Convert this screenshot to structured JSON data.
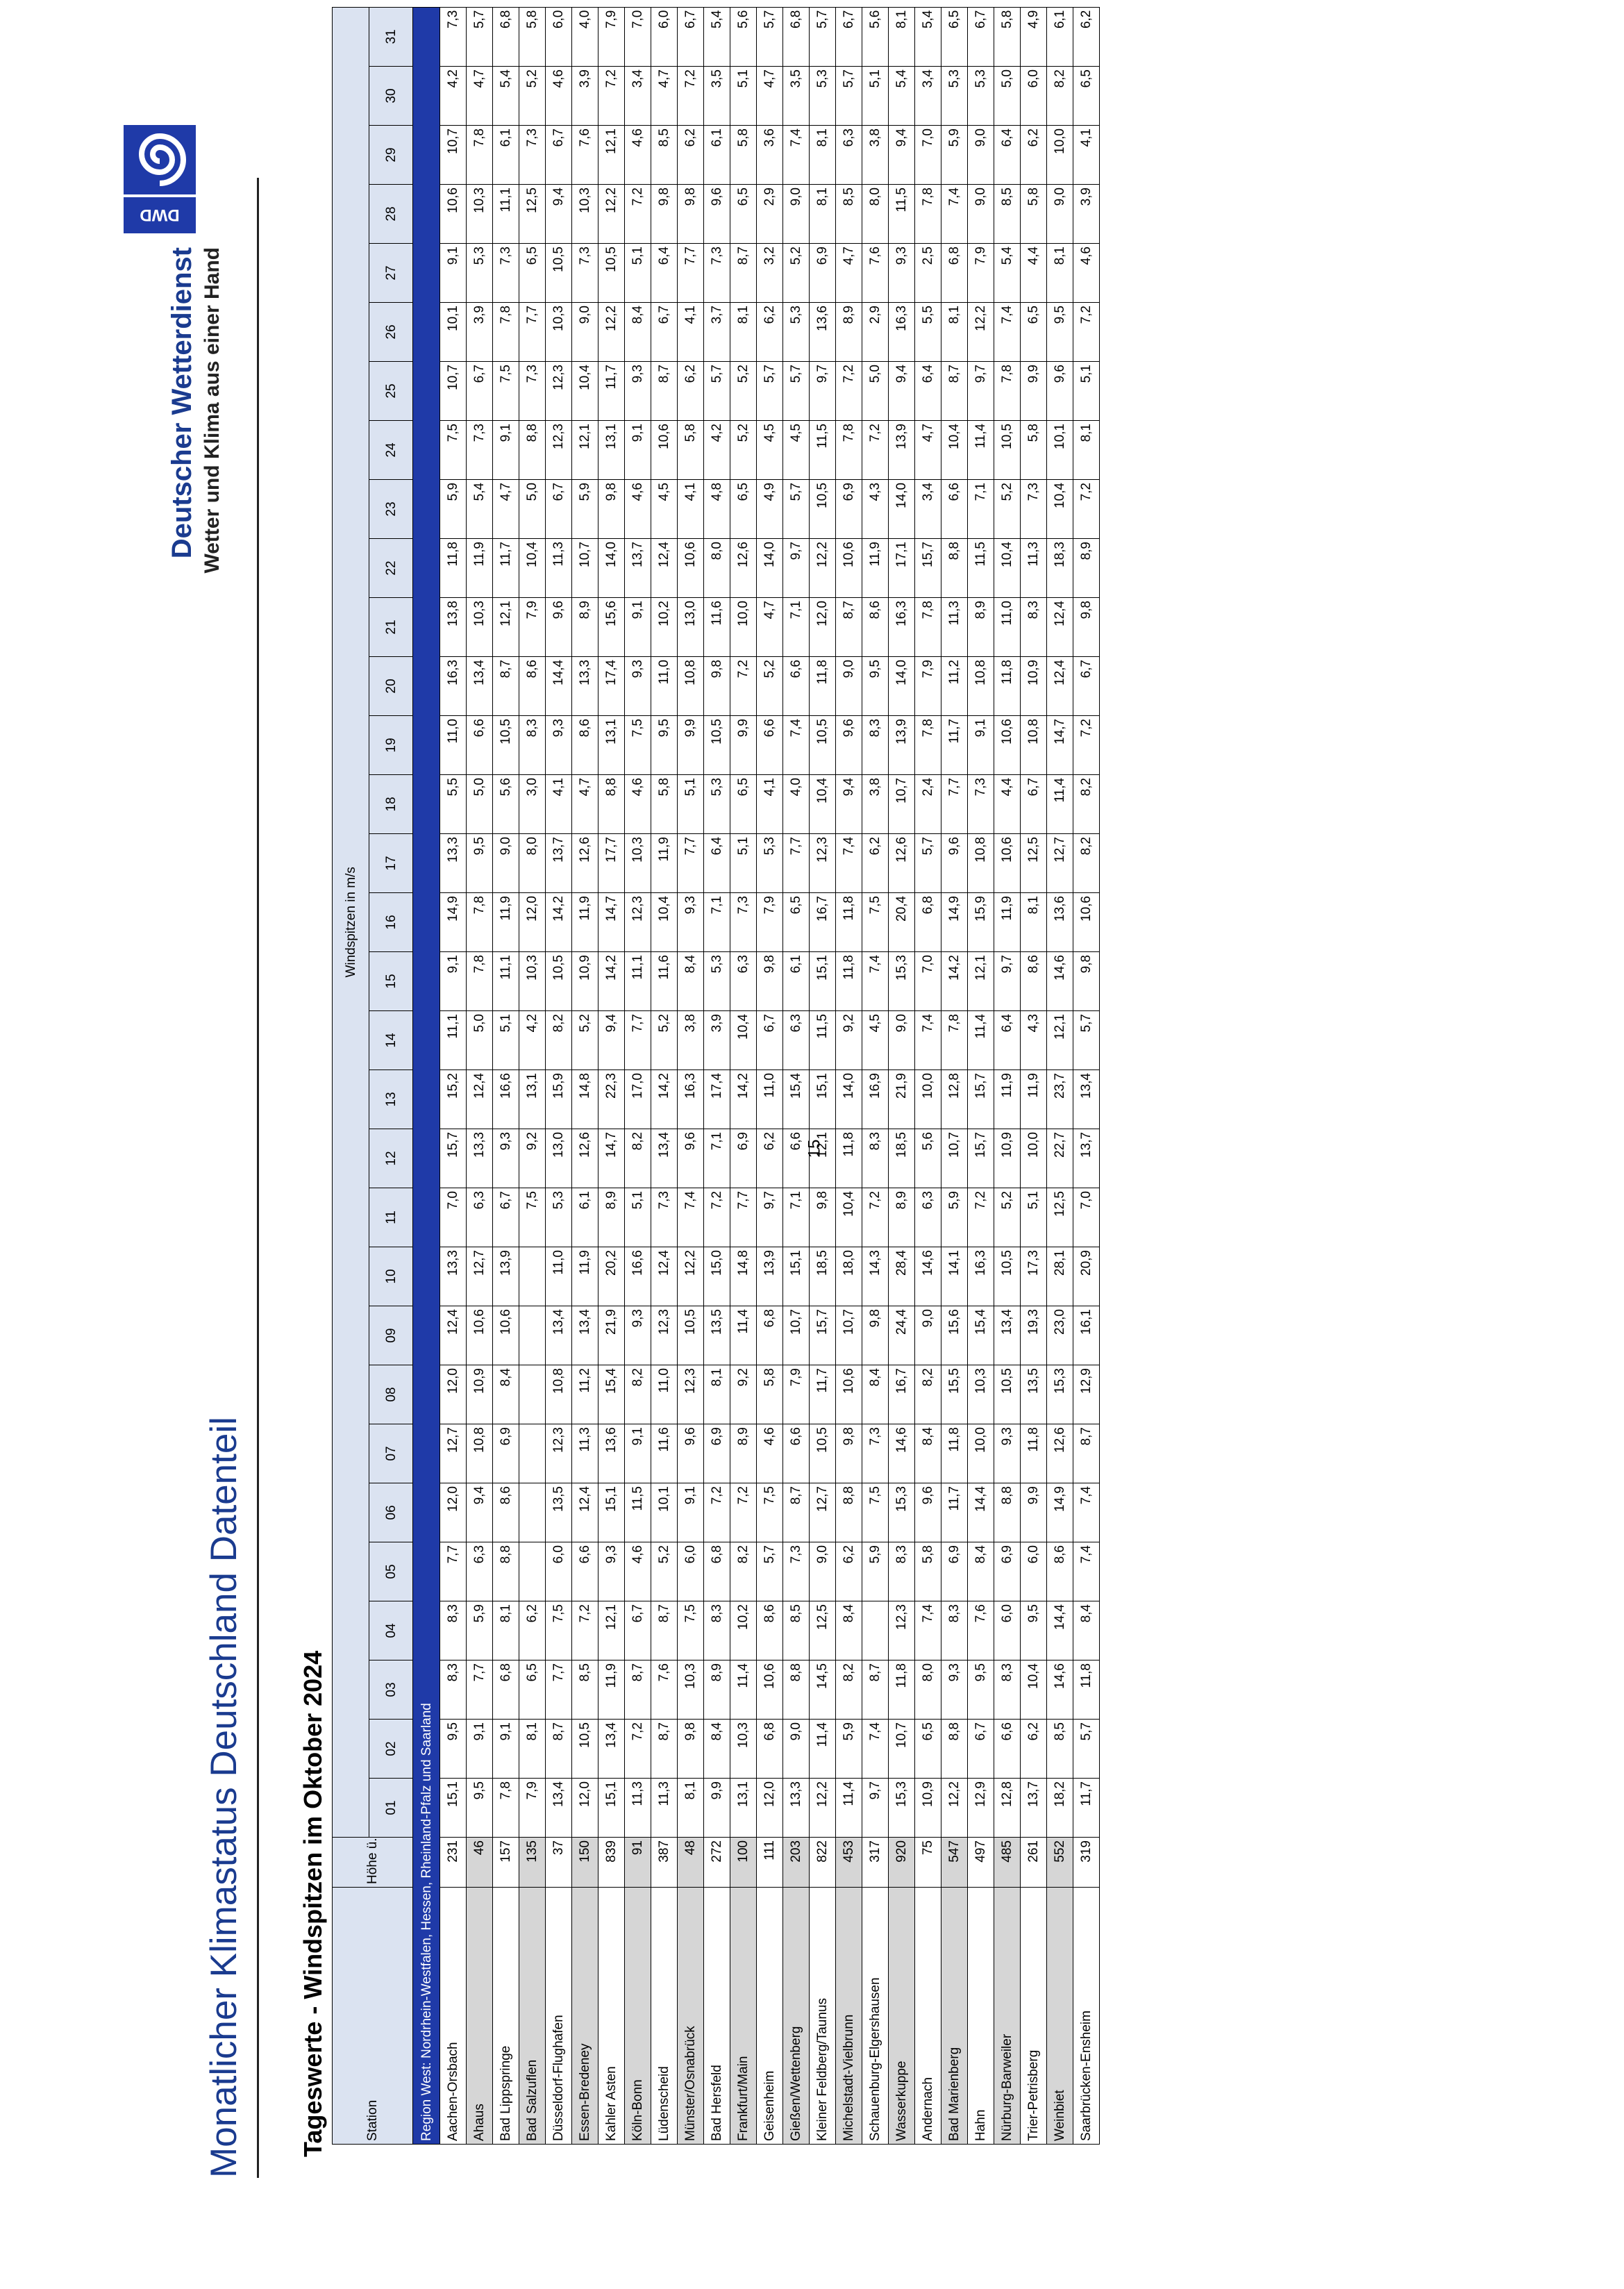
{
  "header": {
    "doc_title": "Monatlicher Klimastatus Deutschland Datenteil",
    "brand_name": "Deutscher Wetterdienst",
    "brand_claim": "Wetter und Klima aus einer Hand",
    "logo_text": "DWD",
    "logo_icon": "dwd-swirl-icon",
    "brand_color": "#1f3aa8"
  },
  "section_title": "Tageswerte - Windspitzen im Oktober 2024",
  "table": {
    "station_header": "Station",
    "height_header": "Höhe ü. NHN in m",
    "super_header": "Windspitzen in m/s",
    "days": [
      "01",
      "02",
      "03",
      "04",
      "05",
      "06",
      "07",
      "08",
      "09",
      "10",
      "11",
      "12",
      "13",
      "14",
      "15",
      "16",
      "17",
      "18",
      "19",
      "20",
      "21",
      "22",
      "23",
      "24",
      "25",
      "26",
      "27",
      "28",
      "29",
      "30",
      "31"
    ],
    "region": "Region West: Nordrhein-Westfalen, Hessen, Rheinland-Pfalz und Saarland",
    "rows": [
      {
        "station": "Aachen-Orsbach",
        "height": "231",
        "v": [
          "15,1",
          "9,5",
          "8,3",
          "8,3",
          "7,7",
          "12,0",
          "12,7",
          "12,0",
          "12,4",
          "13,3",
          "7,0",
          "15,7",
          "15,2",
          "11,1",
          "9,1",
          "14,9",
          "13,3",
          "5,5",
          "11,0",
          "16,3",
          "13,8",
          "11,8",
          "5,9",
          "7,5",
          "10,7",
          "10,1",
          "9,1",
          "10,6",
          "10,7",
          "4,2",
          "7,3"
        ]
      },
      {
        "station": "Ahaus",
        "height": "46",
        "v": [
          "9,5",
          "9,1",
          "7,7",
          "5,9",
          "6,3",
          "9,4",
          "10,8",
          "10,9",
          "10,6",
          "12,7",
          "6,3",
          "13,3",
          "12,4",
          "5,0",
          "7,8",
          "7,8",
          "9,5",
          "5,0",
          "6,6",
          "13,4",
          "10,3",
          "11,9",
          "5,4",
          "7,3",
          "6,7",
          "3,9",
          "5,3",
          "10,3",
          "7,8",
          "4,7",
          "5,7"
        ]
      },
      {
        "station": "Bad Lippspringe",
        "height": "157",
        "v": [
          "7,8",
          "9,1",
          "6,8",
          "8,1",
          "8,8",
          "8,6",
          "6,9",
          "8,4",
          "10,6",
          "13,9",
          "6,7",
          "9,3",
          "16,6",
          "5,1",
          "11,1",
          "11,9",
          "9,0",
          "5,6",
          "10,5",
          "8,7",
          "12,1",
          "11,7",
          "4,7",
          "9,1",
          "7,5",
          "7,8",
          "7,3",
          "11,1",
          "6,1",
          "5,4",
          "6,8"
        ]
      },
      {
        "station": "Bad Salzuflen",
        "height": "135",
        "v": [
          "7,9",
          "8,1",
          "6,5",
          "6,2",
          "",
          "",
          "",
          "",
          "",
          "",
          "7,5",
          "9,2",
          "13,1",
          "4,2",
          "10,3",
          "12,0",
          "8,0",
          "3,0",
          "8,3",
          "8,6",
          "7,9",
          "10,4",
          "5,0",
          "8,8",
          "7,3",
          "7,7",
          "6,5",
          "12,5",
          "7,3",
          "5,2",
          "5,8"
        ]
      },
      {
        "station": "Düsseldorf-Flughafen",
        "height": "37",
        "v": [
          "13,4",
          "8,7",
          "7,7",
          "7,5",
          "6,0",
          "13,5",
          "12,3",
          "10,8",
          "13,4",
          "11,0",
          "5,3",
          "13,0",
          "15,9",
          "8,2",
          "10,5",
          "14,2",
          "13,7",
          "4,1",
          "9,3",
          "14,4",
          "9,6",
          "11,3",
          "6,7",
          "12,3",
          "12,3",
          "10,3",
          "10,5",
          "9,4",
          "6,7",
          "4,6",
          "6,0"
        ]
      },
      {
        "station": "Essen-Bredeney",
        "height": "150",
        "v": [
          "12,0",
          "10,5",
          "8,5",
          "7,2",
          "6,6",
          "12,4",
          "11,3",
          "11,2",
          "13,4",
          "11,9",
          "6,1",
          "12,6",
          "14,8",
          "5,2",
          "10,9",
          "11,9",
          "12,6",
          "4,7",
          "8,6",
          "13,3",
          "8,9",
          "10,7",
          "5,9",
          "12,1",
          "10,4",
          "9,0",
          "7,3",
          "10,3",
          "7,6",
          "3,9",
          "4,0"
        ]
      },
      {
        "station": "Kahler Asten",
        "height": "839",
        "v": [
          "15,1",
          "13,4",
          "11,9",
          "12,1",
          "9,3",
          "15,1",
          "13,6",
          "15,4",
          "21,9",
          "20,2",
          "8,9",
          "14,7",
          "22,3",
          "9,4",
          "14,2",
          "14,7",
          "17,7",
          "8,8",
          "13,1",
          "17,4",
          "15,6",
          "14,0",
          "9,8",
          "13,1",
          "11,7",
          "12,2",
          "10,5",
          "12,2",
          "12,1",
          "7,2",
          "7,9"
        ]
      },
      {
        "station": "Köln-Bonn",
        "height": "91",
        "v": [
          "11,3",
          "7,2",
          "8,7",
          "6,7",
          "4,6",
          "11,5",
          "9,1",
          "8,2",
          "9,3",
          "16,6",
          "5,1",
          "8,2",
          "17,0",
          "7,7",
          "11,1",
          "12,3",
          "10,3",
          "4,6",
          "7,5",
          "9,3",
          "9,1",
          "13,7",
          "4,6",
          "9,1",
          "9,3",
          "8,4",
          "5,1",
          "7,2",
          "4,6",
          "3,4",
          "7,0"
        ]
      },
      {
        "station": "Lüdenscheid",
        "height": "387",
        "v": [
          "11,3",
          "8,7",
          "7,6",
          "8,7",
          "5,2",
          "10,1",
          "11,6",
          "11,0",
          "12,3",
          "12,4",
          "7,3",
          "13,4",
          "14,2",
          "5,2",
          "11,6",
          "10,4",
          "11,9",
          "5,8",
          "9,5",
          "11,0",
          "10,2",
          "12,4",
          "4,5",
          "10,6",
          "8,7",
          "6,7",
          "6,4",
          "9,8",
          "8,5",
          "4,7",
          "6,0"
        ]
      },
      {
        "station": "Münster/Osnabrück",
        "height": "48",
        "v": [
          "8,1",
          "9,8",
          "10,3",
          "7,5",
          "6,0",
          "9,1",
          "9,6",
          "12,3",
          "10,5",
          "12,2",
          "7,4",
          "9,6",
          "16,3",
          "3,8",
          "8,4",
          "9,3",
          "7,7",
          "5,1",
          "9,9",
          "10,8",
          "13,0",
          "10,6",
          "4,1",
          "5,8",
          "6,2",
          "4,1",
          "7,7",
          "9,8",
          "6,2",
          "7,2",
          "6,7"
        ]
      },
      {
        "station": "Bad Hersfeld",
        "height": "272",
        "v": [
          "9,9",
          "8,4",
          "8,9",
          "8,3",
          "6,8",
          "7,2",
          "6,9",
          "8,1",
          "13,5",
          "15,0",
          "7,2",
          "7,1",
          "17,4",
          "3,9",
          "5,3",
          "7,1",
          "6,4",
          "5,3",
          "10,5",
          "9,8",
          "11,6",
          "8,0",
          "4,8",
          "4,2",
          "5,7",
          "3,7",
          "7,3",
          "9,6",
          "6,1",
          "3,5",
          "5,4"
        ]
      },
      {
        "station": "Frankfurt/Main",
        "height": "100",
        "v": [
          "13,1",
          "10,3",
          "11,4",
          "10,2",
          "8,2",
          "7,2",
          "8,9",
          "9,2",
          "11,4",
          "14,8",
          "7,7",
          "6,9",
          "14,2",
          "10,4",
          "6,3",
          "7,3",
          "5,1",
          "6,5",
          "9,9",
          "7,2",
          "10,0",
          "12,6",
          "6,5",
          "5,2",
          "5,2",
          "8,1",
          "8,7",
          "6,5",
          "5,8",
          "5,1",
          "5,6"
        ]
      },
      {
        "station": "Geisenheim",
        "height": "111",
        "v": [
          "12,0",
          "6,8",
          "10,6",
          "8,6",
          "5,7",
          "7,5",
          "4,6",
          "5,8",
          "6,8",
          "13,9",
          "9,7",
          "6,2",
          "11,0",
          "6,7",
          "9,8",
          "7,9",
          "5,3",
          "4,1",
          "6,6",
          "5,2",
          "4,7",
          "14,0",
          "4,9",
          "4,5",
          "5,7",
          "6,2",
          "3,2",
          "2,9",
          "3,6",
          "4,7",
          "5,7"
        ]
      },
      {
        "station": "Gießen/Wettenberg",
        "height": "203",
        "v": [
          "13,3",
          "9,0",
          "8,8",
          "8,5",
          "7,3",
          "8,7",
          "6,6",
          "7,9",
          "10,7",
          "15,1",
          "7,1",
          "6,6",
          "15,4",
          "6,3",
          "6,1",
          "6,5",
          "7,7",
          "4,0",
          "7,4",
          "6,6",
          "7,1",
          "9,7",
          "5,7",
          "4,5",
          "5,7",
          "5,3",
          "5,2",
          "9,0",
          "7,4",
          "3,5",
          "6,8"
        ]
      },
      {
        "station": "Kleiner Feldberg/Taunus",
        "height": "822",
        "v": [
          "12,2",
          "11,4",
          "14,5",
          "12,5",
          "9,0",
          "12,7",
          "10,5",
          "11,7",
          "15,7",
          "18,5",
          "9,8",
          "12,1",
          "15,1",
          "11,5",
          "15,1",
          "16,7",
          "12,3",
          "10,4",
          "10,5",
          "11,8",
          "12,0",
          "12,2",
          "10,5",
          "11,5",
          "9,7",
          "13,6",
          "6,9",
          "8,1",
          "8,1",
          "5,3",
          "5,7"
        ]
      },
      {
        "station": "Michelstadt-Vielbrunn",
        "height": "453",
        "v": [
          "11,4",
          "5,9",
          "8,2",
          "8,4",
          "6,2",
          "8,8",
          "9,8",
          "10,6",
          "10,7",
          "18,0",
          "10,4",
          "11,8",
          "14,0",
          "9,2",
          "11,8",
          "11,8",
          "7,4",
          "9,4",
          "9,6",
          "9,0",
          "8,7",
          "10,6",
          "6,9",
          "7,8",
          "7,2",
          "8,9",
          "4,7",
          "8,5",
          "6,3",
          "5,7",
          "6,7"
        ]
      },
      {
        "station": "Schauenburg-Elgershausen",
        "height": "317",
        "v": [
          "9,7",
          "7,4",
          "8,7",
          "",
          "5,9",
          "7,5",
          "7,3",
          "8,4",
          "9,8",
          "14,3",
          "7,2",
          "8,3",
          "16,9",
          "4,5",
          "7,4",
          "7,5",
          "6,2",
          "3,8",
          "8,3",
          "9,5",
          "8,6",
          "11,9",
          "4,3",
          "7,2",
          "5,0",
          "2,9",
          "7,6",
          "8,0",
          "3,8",
          "5,1",
          "5,6"
        ]
      },
      {
        "station": "Wasserkuppe",
        "height": "920",
        "v": [
          "15,3",
          "10,7",
          "11,8",
          "12,3",
          "8,3",
          "15,3",
          "14,6",
          "16,7",
          "24,4",
          "28,4",
          "8,9",
          "18,5",
          "21,9",
          "9,0",
          "15,3",
          "20,4",
          "12,6",
          "10,7",
          "13,9",
          "14,0",
          "16,3",
          "17,1",
          "14,0",
          "13,9",
          "9,4",
          "16,3",
          "9,3",
          "11,5",
          "9,4",
          "5,4",
          "8,1"
        ]
      },
      {
        "station": "Andernach",
        "height": "75",
        "v": [
          "10,9",
          "6,5",
          "8,0",
          "7,4",
          "5,8",
          "9,6",
          "8,4",
          "8,2",
          "9,0",
          "14,6",
          "6,3",
          "5,6",
          "10,0",
          "7,4",
          "7,0",
          "6,8",
          "5,7",
          "2,4",
          "7,8",
          "7,9",
          "7,8",
          "15,7",
          "3,4",
          "4,7",
          "6,4",
          "5,5",
          "2,5",
          "7,8",
          "7,0",
          "3,4",
          "5,4"
        ]
      },
      {
        "station": "Bad Marienberg",
        "height": "547",
        "v": [
          "12,2",
          "8,8",
          "9,3",
          "8,3",
          "6,9",
          "11,7",
          "11,8",
          "15,5",
          "15,6",
          "14,1",
          "5,9",
          "10,7",
          "12,8",
          "7,8",
          "14,2",
          "14,9",
          "9,6",
          "7,7",
          "11,7",
          "11,2",
          "11,3",
          "8,8",
          "6,6",
          "10,4",
          "8,7",
          "8,1",
          "6,8",
          "7,4",
          "5,9",
          "5,3",
          "6,5"
        ]
      },
      {
        "station": "Hahn",
        "height": "497",
        "v": [
          "12,9",
          "6,7",
          "9,5",
          "7,6",
          "8,4",
          "14,4",
          "10,0",
          "10,3",
          "15,4",
          "16,3",
          "7,2",
          "15,7",
          "15,7",
          "11,4",
          "12,1",
          "15,9",
          "10,8",
          "7,3",
          "9,1",
          "10,8",
          "8,9",
          "11,5",
          "7,1",
          "11,4",
          "9,7",
          "12,2",
          "7,9",
          "9,0",
          "9,0",
          "5,3",
          "6,7"
        ]
      },
      {
        "station": "Nürburg-Barweiler",
        "height": "485",
        "v": [
          "12,8",
          "6,6",
          "8,3",
          "6,0",
          "6,9",
          "8,8",
          "9,3",
          "10,5",
          "13,4",
          "10,5",
          "5,2",
          "10,9",
          "11,9",
          "6,4",
          "9,7",
          "11,9",
          "10,6",
          "4,4",
          "10,6",
          "11,8",
          "11,0",
          "10,4",
          "5,2",
          "10,5",
          "7,8",
          "7,4",
          "5,4",
          "8,5",
          "6,4",
          "5,0",
          "5,8"
        ]
      },
      {
        "station": "Trier-Petrisberg",
        "height": "261",
        "v": [
          "13,7",
          "6,2",
          "10,4",
          "9,5",
          "6,0",
          "9,9",
          "11,8",
          "13,5",
          "19,3",
          "17,3",
          "5,1",
          "10,0",
          "11,9",
          "4,3",
          "8,6",
          "8,1",
          "12,5",
          "6,7",
          "10,8",
          "10,9",
          "8,3",
          "11,3",
          "7,3",
          "5,8",
          "9,9",
          "6,5",
          "4,4",
          "5,8",
          "6,2",
          "6,0",
          "4,9"
        ]
      },
      {
        "station": "Weinbiet",
        "height": "552",
        "v": [
          "18,2",
          "8,5",
          "14,6",
          "14,4",
          "8,6",
          "14,9",
          "12,6",
          "15,3",
          "23,0",
          "28,1",
          "12,5",
          "22,7",
          "23,7",
          "12,1",
          "14,6",
          "13,6",
          "12,7",
          "11,4",
          "14,7",
          "12,4",
          "12,4",
          "18,3",
          "10,4",
          "10,1",
          "9,6",
          "9,5",
          "8,1",
          "9,0",
          "10,0",
          "8,2",
          "6,1"
        ]
      },
      {
        "station": "Saarbrücken-Ensheim",
        "height": "319",
        "v": [
          "11,7",
          "5,7",
          "11,8",
          "8,4",
          "7,4",
          "7,4",
          "8,7",
          "12,9",
          "16,1",
          "20,9",
          "7,0",
          "13,7",
          "13,4",
          "5,7",
          "9,8",
          "10,6",
          "8,2",
          "8,2",
          "7,2",
          "6,7",
          "9,8",
          "8,9",
          "7,2",
          "8,1",
          "5,1",
          "7,2",
          "4,6",
          "3,9",
          "4,1",
          "6,5",
          "6,2"
        ]
      }
    ]
  },
  "page_number": "15"
}
